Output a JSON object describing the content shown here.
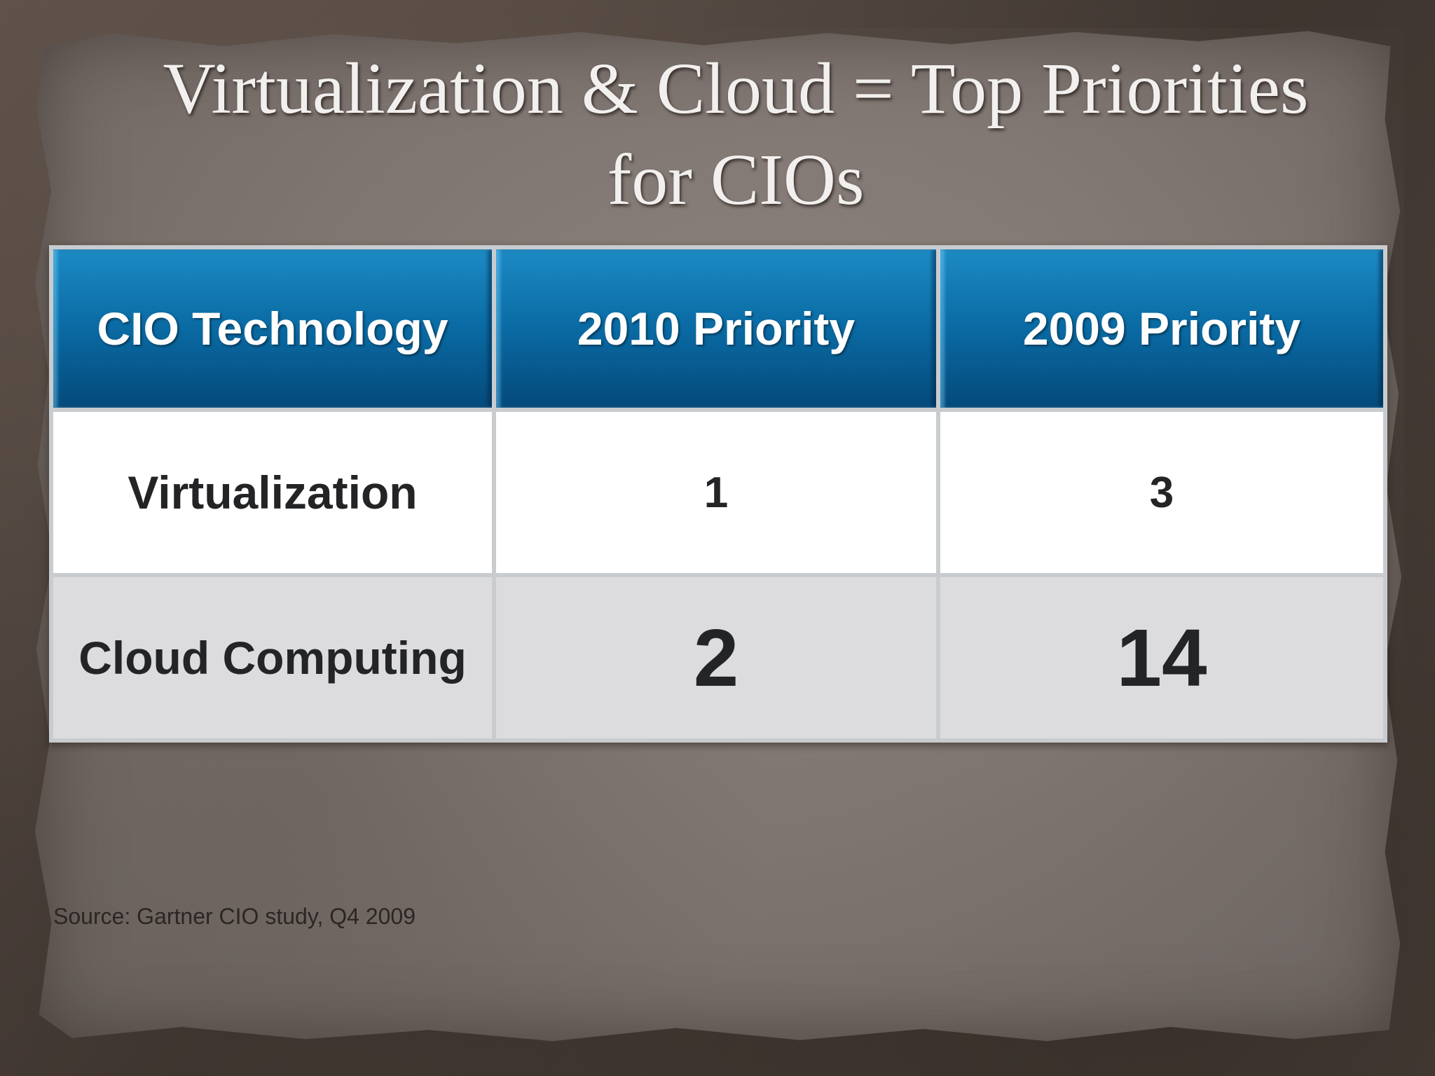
{
  "slide": {
    "title_line1": "Virtualization & Cloud = Top Priorities",
    "title_line2": "for CIOs"
  },
  "table": {
    "headers": [
      "CIO Technology",
      "2010 Priority",
      "2009 Priority"
    ],
    "rows": [
      [
        "Virtualization",
        "1",
        "3"
      ],
      [
        "Cloud Computing",
        "2",
        "14"
      ]
    ]
  },
  "source": "Source:  Gartner CIO study, Q4 2009",
  "colors": {
    "header_blue": "#0a6aa3",
    "row_white": "#ffffff",
    "row_gray": "#dcdcdf",
    "paper": "#7f7571"
  }
}
